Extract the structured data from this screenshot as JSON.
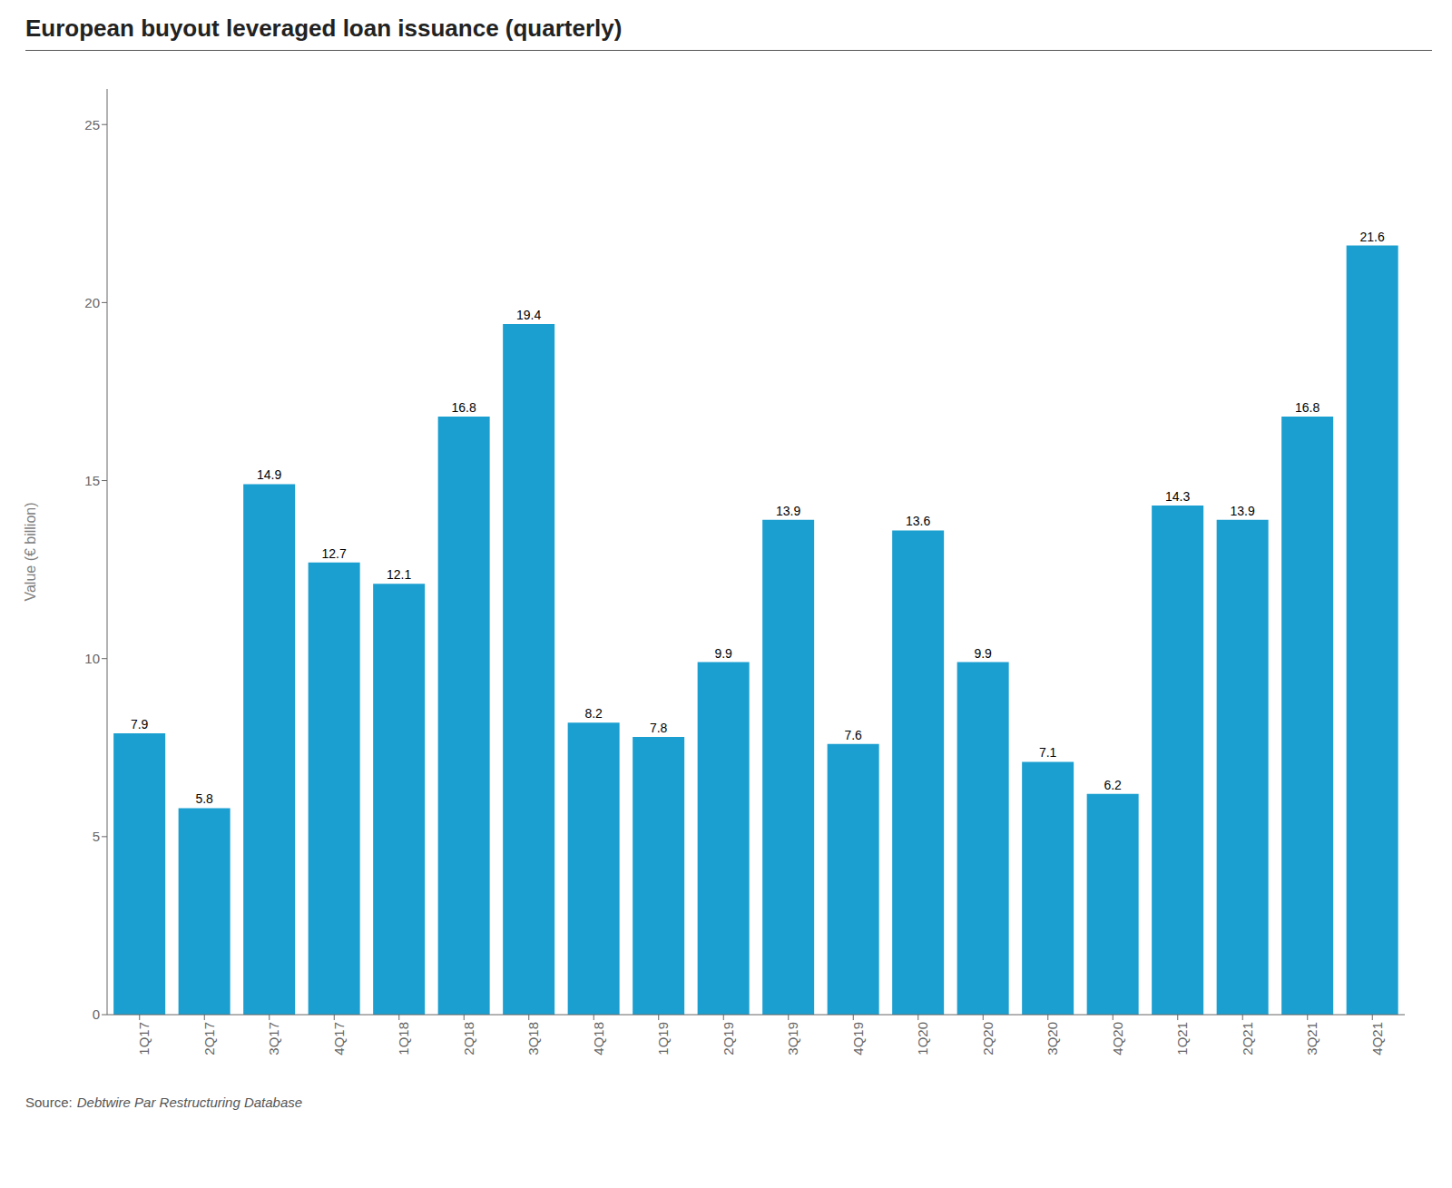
{
  "chart_data": {
    "type": "bar",
    "title": "European buyout leveraged loan issuance (quarterly)",
    "ylabel": "Value (€ billion)",
    "annotations": [
      "Source:",
      "Debtwire Par Restructuring Database"
    ],
    "categories": [
      "1Q17",
      "2Q17",
      "3Q17",
      "4Q17",
      "1Q18",
      "2Q18",
      "3Q18",
      "4Q18",
      "1Q19",
      "2Q19",
      "3Q19",
      "4Q19",
      "1Q20",
      "2Q20",
      "3Q20",
      "4Q20",
      "1Q21",
      "2Q21",
      "3Q21",
      "4Q21"
    ],
    "values": [
      7.9,
      5.8,
      14.9,
      12.7,
      12.1,
      16.8,
      19.4,
      8.2,
      7.8,
      9.9,
      13.9,
      7.6,
      13.6,
      9.9,
      7.1,
      6.2,
      14.3,
      13.9,
      16.8,
      21.6
    ],
    "color": "#1a9fd0",
    "ylim": [
      0,
      26
    ],
    "yticks": [
      0,
      5,
      10,
      15,
      20,
      25
    ],
    "grid": false,
    "data_labels": true
  }
}
